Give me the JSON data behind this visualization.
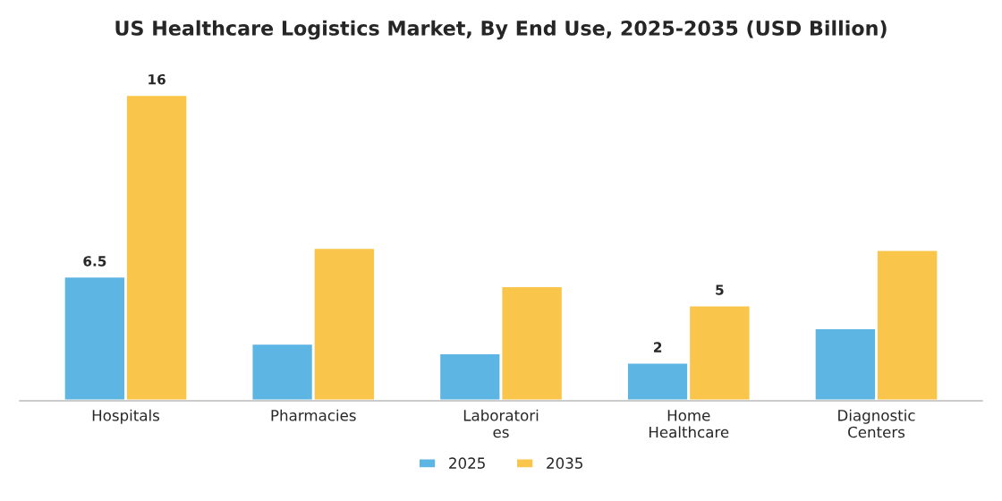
{
  "chart_data": {
    "type": "bar",
    "title": "US Healthcare Logistics Market, By End Use, 2025-2035 (USD Billion)",
    "categories": [
      "Hospitals",
      "Pharmacies",
      "Laboratori\nes",
      "Home\nHealthcare",
      "Diagnostic\nCenters"
    ],
    "series": [
      {
        "name": "2025",
        "color": "#5db5e3",
        "values": [
          6.5,
          3.0,
          2.5,
          2,
          3.8
        ],
        "value_labels": [
          "6.5",
          null,
          null,
          "2",
          null
        ]
      },
      {
        "name": "2035",
        "color": "#f9c54a",
        "values": [
          16,
          8.0,
          6.0,
          5,
          7.9
        ],
        "value_labels": [
          "16",
          null,
          null,
          "5",
          null
        ]
      }
    ],
    "legend": "bottom",
    "grid": false
  }
}
